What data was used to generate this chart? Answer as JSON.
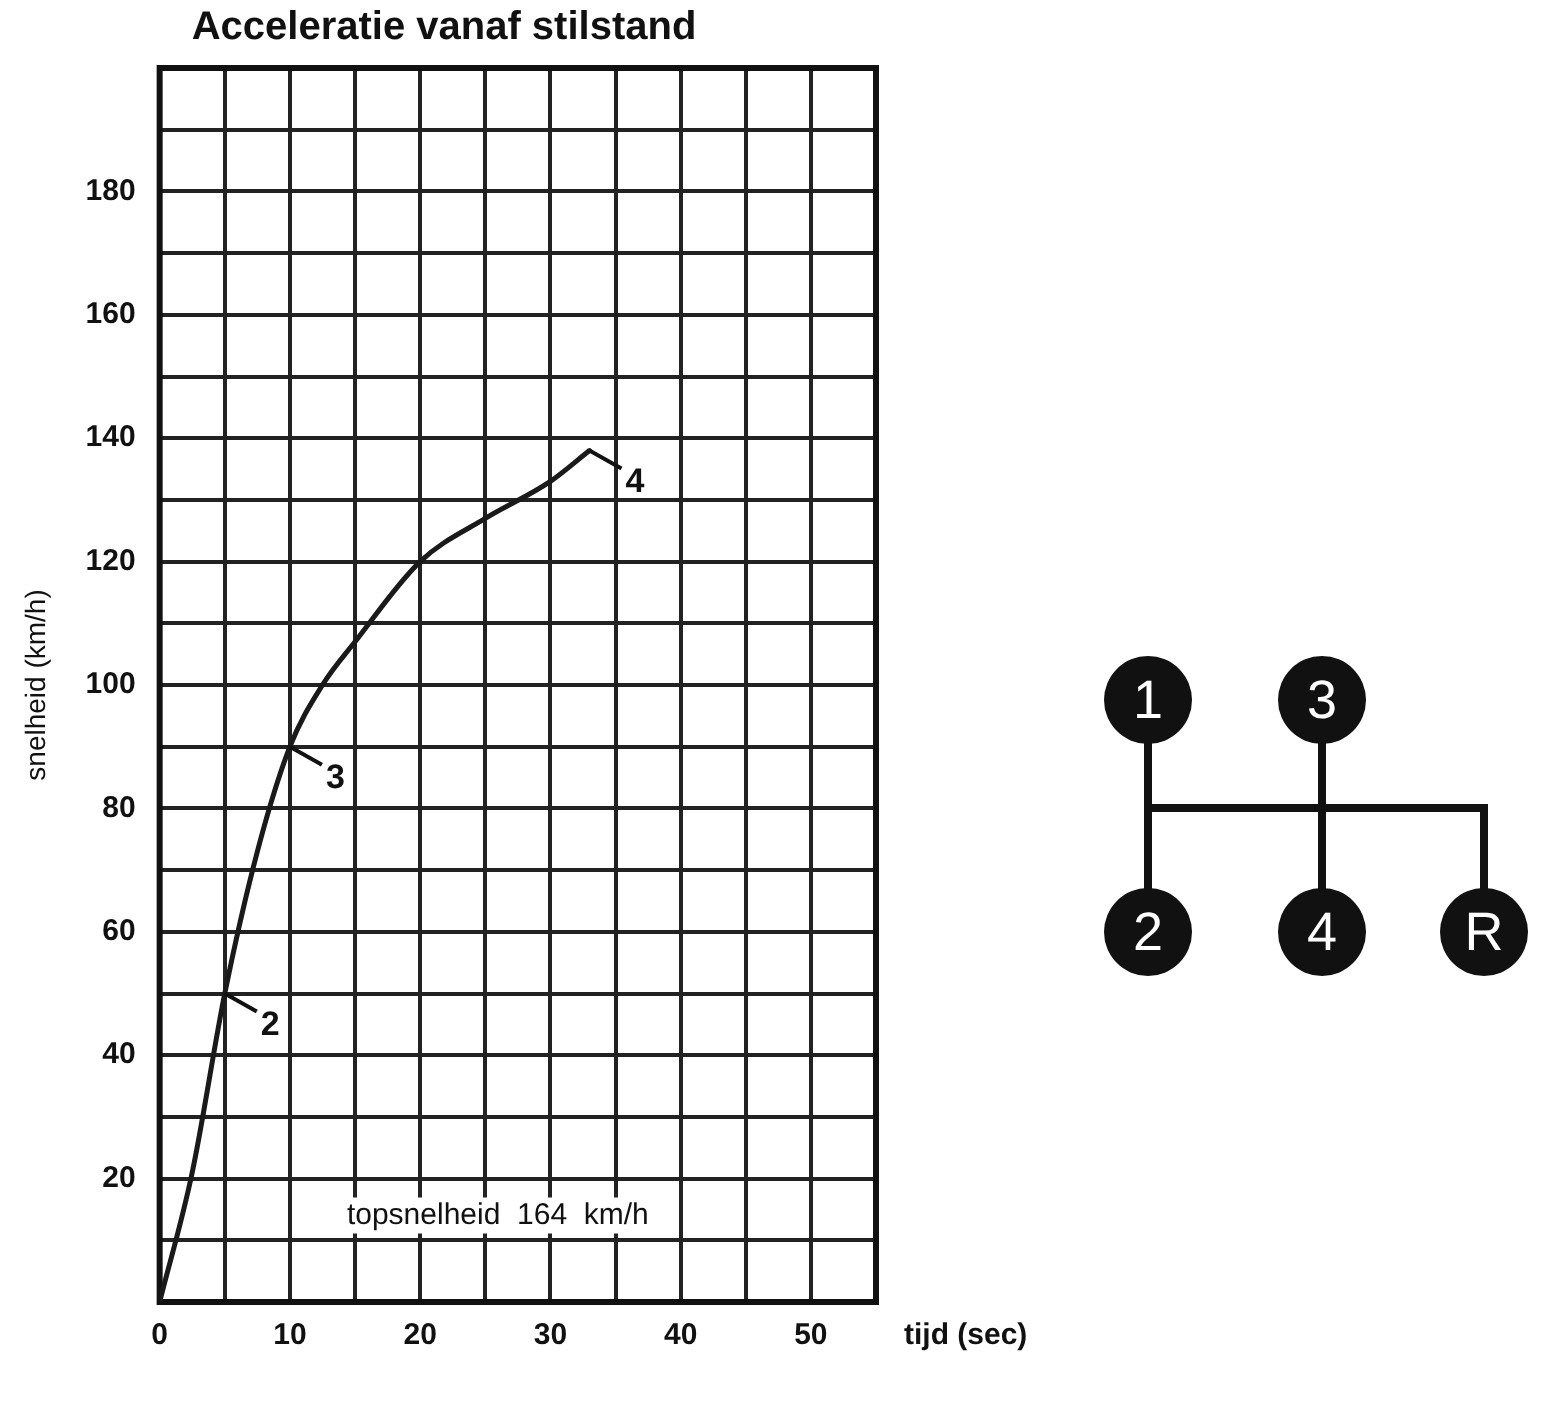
{
  "chart_data": {
    "type": "line",
    "title": "Acceleratie vanaf stilstand",
    "xlabel": "tijd (sec)",
    "ylabel": "snelheid (km/h)",
    "x": [
      0,
      2.5,
      5,
      7.5,
      10,
      12.5,
      15,
      20,
      25,
      30,
      33
    ],
    "series": [
      {
        "color": "#1a1a1a",
        "values": [
          0,
          21,
          50,
          73,
          90,
          100,
          107,
          120,
          127,
          133,
          138
        ]
      }
    ],
    "xlim": [
      0,
      55
    ],
    "xticks": [
      0,
      {
        "value": 5,
        "label": null
      },
      10,
      {
        "value": 15,
        "label": null
      },
      20,
      {
        "value": 25,
        "label": null
      },
      30,
      {
        "value": 35,
        "label": null
      },
      40,
      {
        "value": 45,
        "label": null
      },
      50,
      {
        "value": 55,
        "label": null
      }
    ],
    "ylim": [
      0,
      200
    ],
    "yticks": [
      {
        "value": 0,
        "label": null
      },
      {
        "value": 10,
        "label": null
      },
      20,
      {
        "value": 30,
        "label": null
      },
      40,
      {
        "value": 50,
        "label": null
      },
      60,
      {
        "value": 70,
        "label": null
      },
      80,
      {
        "value": 90,
        "label": null
      },
      100,
      {
        "value": 110,
        "label": null
      },
      120,
      {
        "value": 130,
        "label": null
      },
      140,
      {
        "value": 150,
        "label": null
      },
      160,
      {
        "value": 170,
        "label": null
      },
      180,
      {
        "value": 190,
        "label": null
      },
      {
        "value": 200,
        "label": null
      }
    ],
    "grid": true,
    "legend": false,
    "marker": "none",
    "line_style": "solid",
    "annotations": [
      "topsnelheid  164  km/h",
      {
        "text": "2",
        "x": 5,
        "y": 50
      },
      {
        "text": "3",
        "x": 10,
        "y": 90
      },
      {
        "text": "4",
        "x": 33,
        "y": 138
      },
      "1",
      "3",
      "2",
      "4",
      "R"
    ]
  }
}
